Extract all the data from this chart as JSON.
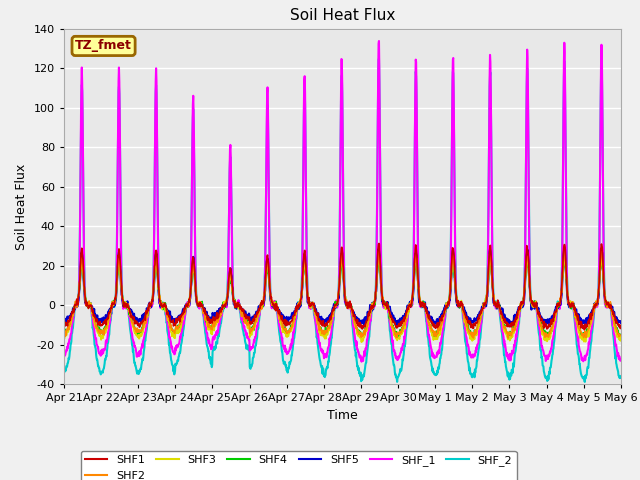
{
  "title": "Soil Heat Flux",
  "xlabel": "Time",
  "ylabel": "Soil Heat Flux",
  "ylim": [
    -40,
    140
  ],
  "yticks": [
    -40,
    -20,
    0,
    20,
    40,
    60,
    80,
    100,
    120,
    140
  ],
  "n_days": 15,
  "series_order": [
    "SHF_2",
    "SHF_1",
    "SHF5",
    "SHF4",
    "SHF3",
    "SHF2",
    "SHF1"
  ],
  "series": {
    "SHF1": {
      "color": "#cc0000",
      "lw": 1.2,
      "peak": 28,
      "night": -10,
      "pw": 0.045,
      "nw": 0.08
    },
    "SHF2": {
      "color": "#ff8800",
      "lw": 1.2,
      "peak": 24,
      "night": -14,
      "pw": 0.048,
      "nw": 0.1
    },
    "SHF3": {
      "color": "#dddd00",
      "lw": 1.2,
      "peak": 22,
      "night": -16,
      "pw": 0.05,
      "nw": 0.11
    },
    "SHF4": {
      "color": "#00cc00",
      "lw": 1.2,
      "peak": 20,
      "night": -14,
      "pw": 0.05,
      "nw": 0.1
    },
    "SHF5": {
      "color": "#0000cc",
      "lw": 1.5,
      "peak": 26,
      "night": -8,
      "pw": 0.042,
      "nw": 0.06
    },
    "SHF_1": {
      "color": "#ff00ff",
      "lw": 1.5,
      "peak": 120,
      "night": -25,
      "pw": 0.032,
      "nw": 0.13
    },
    "SHF_2": {
      "color": "#00cccc",
      "lw": 1.5,
      "peak": 112,
      "night": -34,
      "pw": 0.035,
      "nw": 0.14
    }
  },
  "day_peak_scale": [
    1.0,
    1.0,
    1.0,
    0.88,
    0.68,
    0.92,
    0.98,
    1.05,
    1.12,
    1.05,
    1.06,
    1.06,
    1.07,
    1.1,
    1.1
  ],
  "x_tick_labels": [
    "Apr 21",
    "Apr 22",
    "Apr 23",
    "Apr 24",
    "Apr 25",
    "Apr 26",
    "Apr 27",
    "Apr 28",
    "Apr 29",
    "Apr 30",
    "May 1",
    "May 2",
    "May 3",
    "May 4",
    "May 5",
    "May 6"
  ],
  "legend_order": [
    "SHF1",
    "SHF2",
    "SHF3",
    "SHF4",
    "SHF5",
    "SHF_1",
    "SHF_2"
  ],
  "annotation_text": "TZ_fmet",
  "annotation_box_color": "#ffff99",
  "annotation_border_color": "#996600",
  "fig_bg_color": "#f0f0f0",
  "plot_bg_color": "#e8e8e8",
  "grid_color": "#ffffff"
}
